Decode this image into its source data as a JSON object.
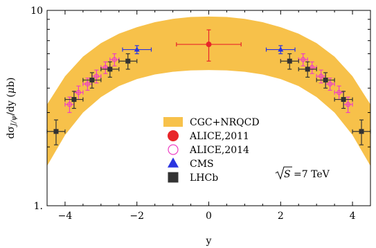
{
  "chart_data": {
    "type": "scatter",
    "xlabel": "y",
    "ylabel": "dσJ/ψ/dy (μb)",
    "xlim": [
      -4.5,
      4.5
    ],
    "ylim": [
      1,
      10
    ],
    "yscale": "log",
    "x_ticks": [
      {
        "value": -4,
        "label": "−4"
      },
      {
        "value": -2,
        "label": "−2"
      },
      {
        "value": 0,
        "label": "0"
      },
      {
        "value": 2,
        "label": "2"
      },
      {
        "value": 4,
        "label": "4"
      }
    ],
    "y_ticks": [
      {
        "value": 1,
        "label": "1."
      },
      {
        "value": 10,
        "label": "10"
      }
    ],
    "grid": false,
    "legend_position": "center-bottom",
    "annotation": "√S =7 TeV",
    "band": {
      "name": "CGC+NRQCD",
      "color": "#f7c14a",
      "x": [
        -4.5,
        -4,
        -3.5,
        -3,
        -2.5,
        -2,
        -1.5,
        -1,
        -0.5,
        0,
        0.5,
        1,
        1.5,
        2,
        2.5,
        3,
        3.5,
        4,
        4.5
      ],
      "lower": [
        1.6,
        2.3,
        3.0,
        3.6,
        4.1,
        4.45,
        4.7,
        4.85,
        4.93,
        4.95,
        4.93,
        4.85,
        4.7,
        4.45,
        4.1,
        3.6,
        3.0,
        2.3,
        1.6
      ],
      "upper": [
        3.3,
        4.6,
        5.8,
        6.8,
        7.6,
        8.2,
        8.7,
        9.05,
        9.25,
        9.3,
        9.25,
        9.05,
        8.7,
        8.2,
        7.6,
        6.8,
        5.8,
        4.6,
        3.3
      ]
    },
    "series": [
      {
        "name": "ALICE,2011",
        "color": "#e8262a",
        "marker": "filled-circle",
        "points": [
          {
            "x": 0.0,
            "y": 6.7,
            "xerr": 0.9,
            "yerr_low": 1.2,
            "yerr_high": 1.25
          }
        ]
      },
      {
        "name": "ALICE,2014",
        "color": "#ee3fc4",
        "marker": "open-circle",
        "points": [
          {
            "x": -3.875,
            "y": 3.3,
            "xerr": 0.125,
            "yerr": 0.3
          },
          {
            "x": -3.625,
            "y": 3.8,
            "xerr": 0.125,
            "yerr": 0.3
          },
          {
            "x": -3.375,
            "y": 4.2,
            "xerr": 0.125,
            "yerr": 0.3
          },
          {
            "x": -3.125,
            "y": 4.6,
            "xerr": 0.125,
            "yerr": 0.35
          },
          {
            "x": -2.875,
            "y": 5.1,
            "xerr": 0.125,
            "yerr": 0.35
          },
          {
            "x": -2.625,
            "y": 5.6,
            "xerr": 0.125,
            "yerr": 0.4
          },
          {
            "x": 2.625,
            "y": 5.6,
            "xerr": 0.125,
            "yerr": 0.4
          },
          {
            "x": 2.875,
            "y": 5.1,
            "xerr": 0.125,
            "yerr": 0.35
          },
          {
            "x": 3.125,
            "y": 4.6,
            "xerr": 0.125,
            "yerr": 0.35
          },
          {
            "x": 3.375,
            "y": 4.2,
            "xerr": 0.125,
            "yerr": 0.3
          },
          {
            "x": 3.625,
            "y": 3.8,
            "xerr": 0.125,
            "yerr": 0.3
          },
          {
            "x": 3.875,
            "y": 3.3,
            "xerr": 0.125,
            "yerr": 0.3
          }
        ]
      },
      {
        "name": "CMS",
        "color": "#2a34e0",
        "marker": "filled-triangle",
        "points": [
          {
            "x": -2.0,
            "y": 6.3,
            "xerr": 0.4,
            "yerr": 0.3
          },
          {
            "x": 2.0,
            "y": 6.3,
            "xerr": 0.4,
            "yerr": 0.3
          }
        ]
      },
      {
        "name": "LHCb",
        "color": "#333333",
        "marker": "filled-square",
        "points": [
          {
            "x": -4.25,
            "y": 2.4,
            "xerr": 0.25,
            "yerr": 0.35
          },
          {
            "x": -3.75,
            "y": 3.5,
            "xerr": 0.25,
            "yerr": 0.35
          },
          {
            "x": -3.25,
            "y": 4.4,
            "xerr": 0.25,
            "yerr": 0.4
          },
          {
            "x": -2.75,
            "y": 5.0,
            "xerr": 0.25,
            "yerr": 0.45
          },
          {
            "x": -2.25,
            "y": 5.5,
            "xerr": 0.25,
            "yerr": 0.5
          },
          {
            "x": 2.25,
            "y": 5.5,
            "xerr": 0.25,
            "yerr": 0.5
          },
          {
            "x": 2.75,
            "y": 5.0,
            "xerr": 0.25,
            "yerr": 0.45
          },
          {
            "x": 3.25,
            "y": 4.4,
            "xerr": 0.25,
            "yerr": 0.4
          },
          {
            "x": 3.75,
            "y": 3.5,
            "xerr": 0.25,
            "yerr": 0.35
          },
          {
            "x": 4.25,
            "y": 2.4,
            "xerr": 0.25,
            "yerr": 0.35
          }
        ]
      }
    ],
    "legend": [
      {
        "label": "CGC+NRQCD",
        "marker": "band",
        "color": "#f7c14a"
      },
      {
        "label": "ALICE,2011",
        "marker": "filled-circle",
        "color": "#e8262a"
      },
      {
        "label": "ALICE,2014",
        "marker": "open-circle",
        "color": "#ee3fc4"
      },
      {
        "label": "CMS",
        "marker": "filled-triangle",
        "color": "#2a34e0"
      },
      {
        "label": "LHCb",
        "marker": "filled-square",
        "color": "#333333"
      }
    ]
  }
}
